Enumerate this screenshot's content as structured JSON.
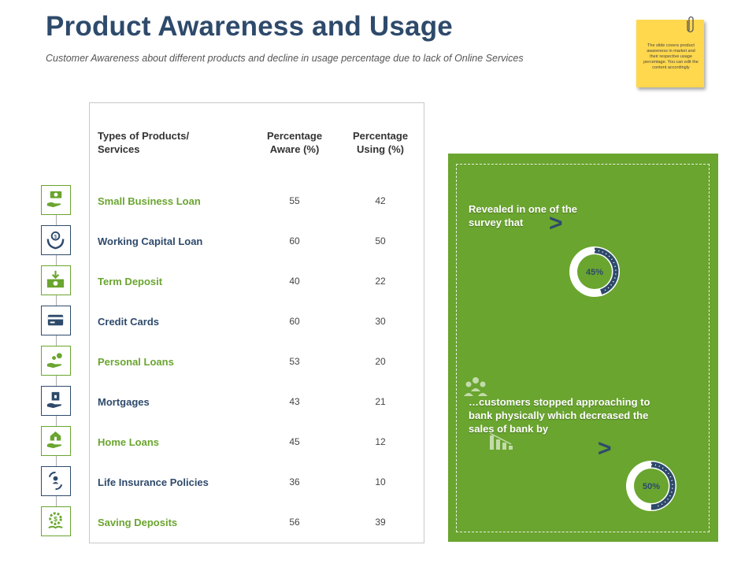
{
  "title": "Product Awareness and Usage",
  "subtitle": "Customer Awareness about  different products and decline in usage percentage due to lack of Online Services",
  "sticky_note": "The slide covers product awareness in market and their respective usage percentage. You can edit the content accordingly",
  "table": {
    "headers": {
      "product_line1": "Types of Products/",
      "product_line2": "Services",
      "aware_line1": "Percentage",
      "aware_line2": "Aware (%)",
      "using_line1": "Percentage",
      "using_line2": "Using (%)"
    },
    "rows": [
      {
        "name": "Small Business Loan",
        "aware": "55",
        "using": "42",
        "icon": "money-hand-icon"
      },
      {
        "name": "Working Capital Loan",
        "aware": "60",
        "using": "50",
        "icon": "coin-hand-icon"
      },
      {
        "name": "Term Deposit",
        "aware": "40",
        "using": "22",
        "icon": "cash-deposit-icon"
      },
      {
        "name": "Credit Cards",
        "aware": "60",
        "using": "30",
        "icon": "credit-card-icon"
      },
      {
        "name": "Personal Loans",
        "aware": "53",
        "using": "20",
        "icon": "coins-hand-icon"
      },
      {
        "name": "Mortgages",
        "aware": "43",
        "using": "21",
        "icon": "mortgage-icon"
      },
      {
        "name": "Home Loans",
        "aware": "45",
        "using": "12",
        "icon": "house-hand-icon"
      },
      {
        "name": "Life Insurance Policies",
        "aware": "36",
        "using": "10",
        "icon": "life-insurance-icon"
      },
      {
        "name": "Saving Deposits",
        "aware": "56",
        "using": "39",
        "icon": "savings-gear-icon"
      }
    ]
  },
  "panel": {
    "text1_line1": "Revealed in one of the",
    "text1_line2": "survey that",
    "text2_line1": "…customers stopped approaching to",
    "text2_line2": "bank physically  which decreased the",
    "text2_line3": "sales of bank by",
    "arrow": ">",
    "donut1": {
      "label": "45%",
      "value": 45
    },
    "donut2": {
      "label": "50%",
      "value": 50
    }
  },
  "colors": {
    "navy": "#2e4a6b",
    "green": "#6aa52f",
    "note": "#ffd84d"
  }
}
